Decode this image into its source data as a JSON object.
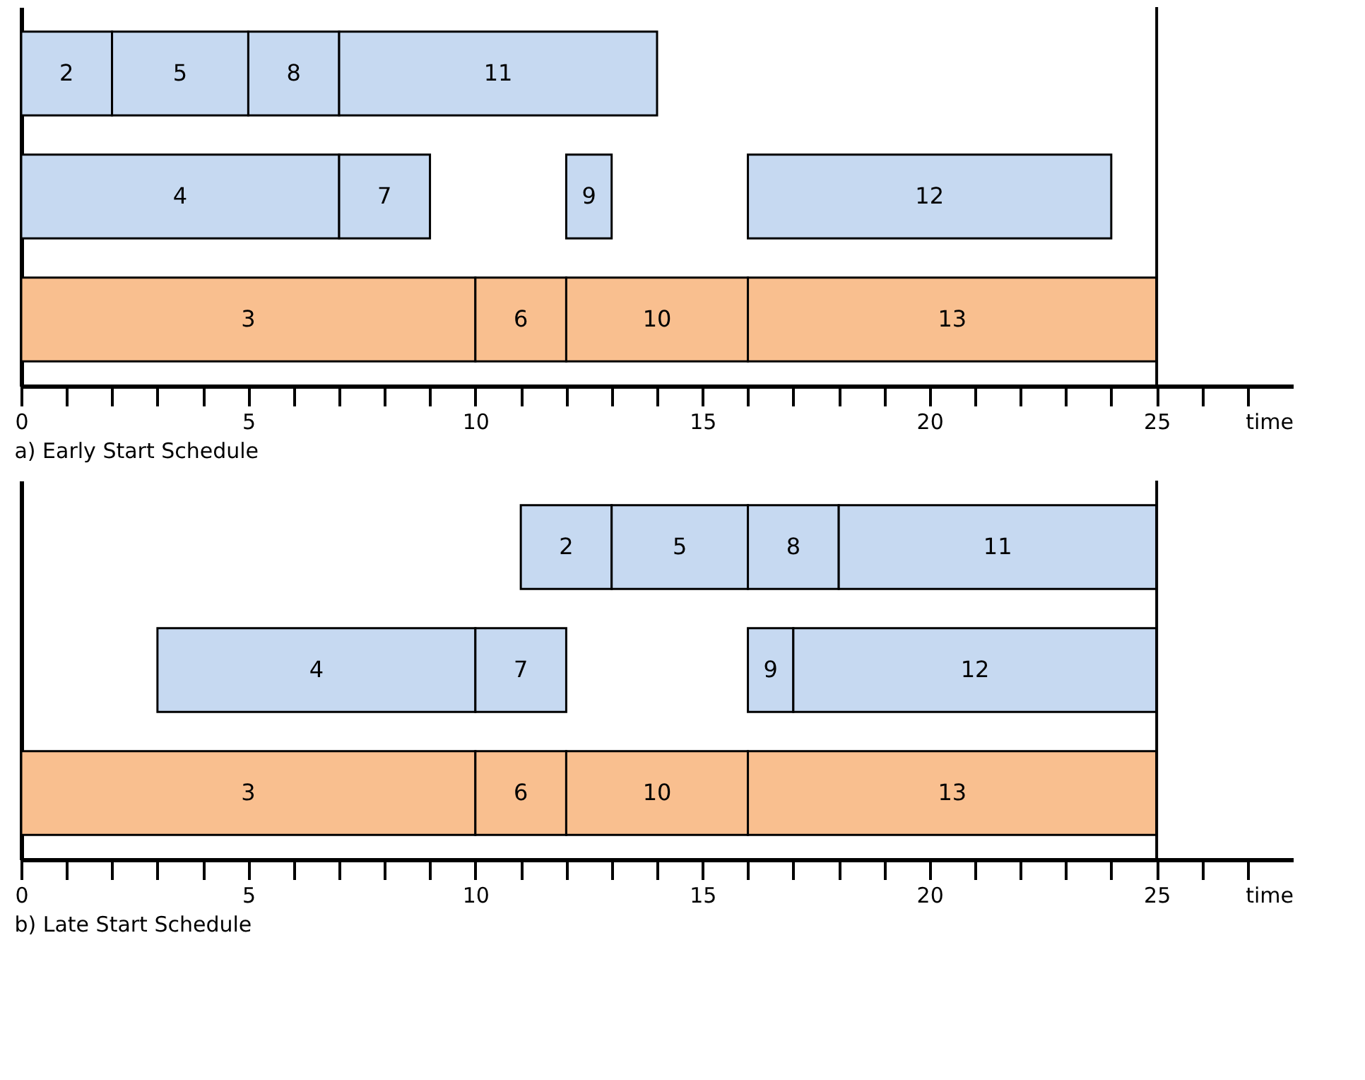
{
  "chart_data": [
    {
      "type": "bar",
      "orientation": "horizontal",
      "title": "a) Early Start Schedule",
      "grid": false,
      "xlabel": "time",
      "categories": [
        null,
        null,
        null
      ],
      "xlim": [
        0,
        28
      ],
      "xticks": [
        0,
        {
          "value": 1,
          "label": null
        },
        {
          "value": 2,
          "label": null
        },
        {
          "value": 3,
          "label": null
        },
        {
          "value": 4,
          "label": null
        },
        5,
        {
          "value": 6,
          "label": null
        },
        {
          "value": 7,
          "label": null
        },
        {
          "value": 8,
          "label": null
        },
        {
          "value": 9,
          "label": null
        },
        10,
        {
          "value": 11,
          "label": null
        },
        {
          "value": 12,
          "label": null
        },
        {
          "value": 13,
          "label": null
        },
        {
          "value": 14,
          "label": null
        },
        15,
        {
          "value": 16,
          "label": null
        },
        {
          "value": 17,
          "label": null
        },
        {
          "value": 18,
          "label": null
        },
        {
          "value": 19,
          "label": null
        },
        20,
        {
          "value": 21,
          "label": null
        },
        {
          "value": 22,
          "label": null
        },
        {
          "value": 23,
          "label": null
        },
        {
          "value": 24,
          "label": null
        },
        25,
        {
          "value": 26,
          "label": null
        },
        {
          "value": 27,
          "label": null
        }
      ],
      "ref_lines": [
        {
          "axis": "x",
          "value": 25,
          "color": "#000000"
        }
      ],
      "series": [
        {
          "name": "2",
          "color": "#c6d9f1",
          "values": [
            2,
            null,
            null
          ],
          "base": [
            0,
            null,
            null
          ]
        },
        {
          "name": "5",
          "color": "#c6d9f1",
          "values": [
            3,
            null,
            null
          ],
          "base": [
            2,
            null,
            null
          ]
        },
        {
          "name": "8",
          "color": "#c6d9f1",
          "values": [
            2,
            null,
            null
          ],
          "base": [
            5,
            null,
            null
          ]
        },
        {
          "name": "11",
          "color": "#c6d9f1",
          "values": [
            7,
            null,
            null
          ],
          "base": [
            7,
            null,
            null
          ]
        },
        {
          "name": "4",
          "color": "#c6d9f1",
          "values": [
            null,
            7,
            null
          ],
          "base": [
            null,
            0,
            null
          ]
        },
        {
          "name": "7",
          "color": "#c6d9f1",
          "values": [
            null,
            2,
            null
          ],
          "base": [
            null,
            7,
            null
          ]
        },
        {
          "name": "9",
          "color": "#c6d9f1",
          "values": [
            null,
            1,
            null
          ],
          "base": [
            null,
            12,
            null
          ]
        },
        {
          "name": "12",
          "color": "#c6d9f1",
          "values": [
            null,
            8,
            null
          ],
          "base": [
            null,
            16,
            null
          ]
        },
        {
          "name": "3",
          "color": "#f9bf8f",
          "values": [
            null,
            null,
            10
          ],
          "base": [
            null,
            null,
            0
          ]
        },
        {
          "name": "6",
          "color": "#f9bf8f",
          "values": [
            null,
            null,
            2
          ],
          "base": [
            null,
            null,
            10
          ]
        },
        {
          "name": "10",
          "color": "#f9bf8f",
          "values": [
            null,
            null,
            4
          ],
          "base": [
            null,
            null,
            12
          ]
        },
        {
          "name": "13",
          "color": "#f9bf8f",
          "values": [
            null,
            null,
            9
          ],
          "base": [
            null,
            null,
            16
          ]
        }
      ]
    },
    {
      "type": "bar",
      "orientation": "horizontal",
      "title": "b) Late Start Schedule",
      "grid": false,
      "xlabel": "time",
      "categories": [
        null,
        null,
        null
      ],
      "xlim": [
        0,
        28
      ],
      "xticks": [
        0,
        {
          "value": 1,
          "label": null
        },
        {
          "value": 2,
          "label": null
        },
        {
          "value": 3,
          "label": null
        },
        {
          "value": 4,
          "label": null
        },
        5,
        {
          "value": 6,
          "label": null
        },
        {
          "value": 7,
          "label": null
        },
        {
          "value": 8,
          "label": null
        },
        {
          "value": 9,
          "label": null
        },
        10,
        {
          "value": 11,
          "label": null
        },
        {
          "value": 12,
          "label": null
        },
        {
          "value": 13,
          "label": null
        },
        {
          "value": 14,
          "label": null
        },
        15,
        {
          "value": 16,
          "label": null
        },
        {
          "value": 17,
          "label": null
        },
        {
          "value": 18,
          "label": null
        },
        {
          "value": 19,
          "label": null
        },
        20,
        {
          "value": 21,
          "label": null
        },
        {
          "value": 22,
          "label": null
        },
        {
          "value": 23,
          "label": null
        },
        {
          "value": 24,
          "label": null
        },
        25,
        {
          "value": 26,
          "label": null
        },
        {
          "value": 27,
          "label": null
        }
      ],
      "ref_lines": [
        {
          "axis": "x",
          "value": 25,
          "color": "#000000"
        }
      ],
      "series": [
        {
          "name": "2",
          "color": "#c6d9f1",
          "values": [
            2,
            null,
            null
          ],
          "base": [
            11,
            null,
            null
          ]
        },
        {
          "name": "5",
          "color": "#c6d9f1",
          "values": [
            3,
            null,
            null
          ],
          "base": [
            13,
            null,
            null
          ]
        },
        {
          "name": "8",
          "color": "#c6d9f1",
          "values": [
            2,
            null,
            null
          ],
          "base": [
            16,
            null,
            null
          ]
        },
        {
          "name": "11",
          "color": "#c6d9f1",
          "values": [
            7,
            null,
            null
          ],
          "base": [
            18,
            null,
            null
          ]
        },
        {
          "name": "4",
          "color": "#c6d9f1",
          "values": [
            null,
            7,
            null
          ],
          "base": [
            null,
            3,
            null
          ]
        },
        {
          "name": "7",
          "color": "#c6d9f1",
          "values": [
            null,
            2,
            null
          ],
          "base": [
            null,
            10,
            null
          ]
        },
        {
          "name": "9",
          "color": "#c6d9f1",
          "values": [
            null,
            1,
            null
          ],
          "base": [
            null,
            16,
            null
          ]
        },
        {
          "name": "12",
          "color": "#c6d9f1",
          "values": [
            null,
            8,
            null
          ],
          "base": [
            null,
            17,
            null
          ]
        },
        {
          "name": "3",
          "color": "#f9bf8f",
          "values": [
            null,
            null,
            10
          ],
          "base": [
            null,
            null,
            0
          ]
        },
        {
          "name": "6",
          "color": "#f9bf8f",
          "values": [
            null,
            null,
            2
          ],
          "base": [
            null,
            null,
            10
          ]
        },
        {
          "name": "10",
          "color": "#f9bf8f",
          "values": [
            null,
            null,
            4
          ],
          "base": [
            null,
            null,
            12
          ]
        },
        {
          "name": "13",
          "color": "#f9bf8f",
          "values": [
            null,
            null,
            9
          ],
          "base": [
            null,
            null,
            16
          ]
        }
      ]
    }
  ]
}
